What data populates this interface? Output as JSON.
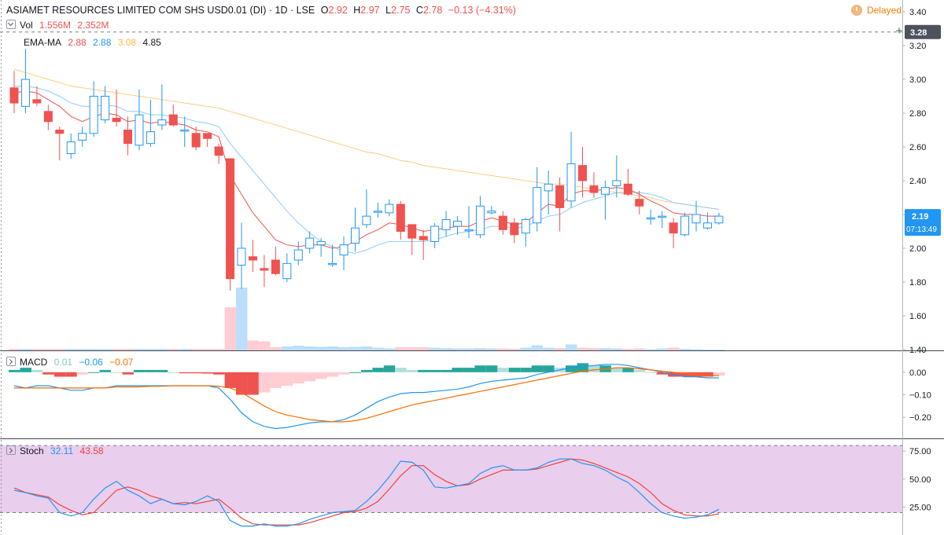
{
  "header": {
    "symbol": "ASIAMET RESOURCES LIMITED COM SHS USD0.01 (DI) · 1D · LSE",
    "ohlc": [
      {
        "label": "O",
        "value": "2.92"
      },
      {
        "label": "H",
        "value": "2.97"
      },
      {
        "label": "L",
        "value": "2.75"
      },
      {
        "label": "C",
        "value": "2.78"
      }
    ],
    "change": "−0.13 (−4.31%)",
    "delayed": "Delayed"
  },
  "legends": {
    "vol": {
      "label": "Vol",
      "v1": "1.556M",
      "v2": "2.352M"
    },
    "ema": {
      "label": "EMA-MA",
      "v1": "2.88",
      "v2": "2.88",
      "v3": "3.08",
      "v4": "4.85"
    },
    "macd": {
      "label": "MACD",
      "v1": "0.01",
      "v2": "−0.06",
      "v3": "−0.07"
    },
    "stoch": {
      "label": "Stoch",
      "v1": "32.11",
      "v2": "43.58"
    }
  },
  "price_labels": {
    "crosshair": "3.28",
    "last": "2.19",
    "countdown": "07:13:49"
  },
  "colors": {
    "up": "#2196f3",
    "down": "#ef5350",
    "hist_up_strong": "#26a69a",
    "hist_up_weak": "#b2dfdb",
    "hist_down_strong": "#ef5350",
    "hist_down_weak": "#ffcdd2",
    "ema_fast": "#ef5350",
    "ema_mid": "#90caf9",
    "ma_slow": "#ffcc80",
    "macd_line": "#2196f3",
    "signal_line": "#ff6d00",
    "stoch_k": "#2196f3",
    "stoch_d": "#f44336",
    "stoch_band": "#e1bee7"
  },
  "chart_data": [
    {
      "type": "candlestick",
      "y_ticks": [
        "3.40",
        "3.20",
        "3.00",
        "2.80",
        "2.60",
        "2.40",
        "2.20",
        "2.00",
        "1.80",
        "1.60",
        "1.40"
      ],
      "ylim": [
        1.4,
        3.4
      ],
      "candles": [
        {
          "o": 2.95,
          "h": 3.05,
          "l": 2.8,
          "c": 2.86
        },
        {
          "o": 2.84,
          "h": 3.18,
          "l": 2.8,
          "c": 3.0
        },
        {
          "o": 2.88,
          "h": 2.96,
          "l": 2.84,
          "c": 2.86
        },
        {
          "o": 2.81,
          "h": 2.85,
          "l": 2.7,
          "c": 2.75
        },
        {
          "o": 2.7,
          "h": 2.72,
          "l": 2.52,
          "c": 2.68
        },
        {
          "o": 2.56,
          "h": 2.68,
          "l": 2.53,
          "c": 2.63
        },
        {
          "o": 2.64,
          "h": 2.72,
          "l": 2.6,
          "c": 2.68
        },
        {
          "o": 2.68,
          "h": 2.99,
          "l": 2.66,
          "c": 2.9
        },
        {
          "o": 2.76,
          "h": 2.96,
          "l": 2.74,
          "c": 2.9
        },
        {
          "o": 2.77,
          "h": 2.94,
          "l": 2.72,
          "c": 2.75
        },
        {
          "o": 2.7,
          "h": 2.78,
          "l": 2.55,
          "c": 2.62
        },
        {
          "o": 2.61,
          "h": 2.94,
          "l": 2.58,
          "c": 2.79
        },
        {
          "o": 2.62,
          "h": 2.88,
          "l": 2.6,
          "c": 2.69
        },
        {
          "o": 2.73,
          "h": 2.97,
          "l": 2.7,
          "c": 2.76
        },
        {
          "o": 2.79,
          "h": 2.85,
          "l": 2.72,
          "c": 2.73
        },
        {
          "o": 2.7,
          "h": 2.78,
          "l": 2.6,
          "c": 2.7
        },
        {
          "o": 2.68,
          "h": 2.72,
          "l": 2.58,
          "c": 2.6
        },
        {
          "o": 2.68,
          "h": 2.68,
          "l": 2.6,
          "c": 2.65
        },
        {
          "o": 2.6,
          "h": 2.62,
          "l": 2.5,
          "c": 2.55
        },
        {
          "o": 2.53,
          "h": 2.53,
          "l": 1.75,
          "c": 1.82
        },
        {
          "o": 1.9,
          "h": 2.15,
          "l": 1.76,
          "c": 2.0
        },
        {
          "o": 1.95,
          "h": 2.05,
          "l": 1.86,
          "c": 1.93
        },
        {
          "o": 1.88,
          "h": 1.96,
          "l": 1.77,
          "c": 1.87
        },
        {
          "o": 1.93,
          "h": 2.01,
          "l": 1.84,
          "c": 1.85
        },
        {
          "o": 1.82,
          "h": 1.97,
          "l": 1.8,
          "c": 1.91
        },
        {
          "o": 1.93,
          "h": 2.04,
          "l": 1.9,
          "c": 1.99
        },
        {
          "o": 2.0,
          "h": 2.1,
          "l": 1.97,
          "c": 2.06
        },
        {
          "o": 2.02,
          "h": 2.06,
          "l": 1.95,
          "c": 2.04
        },
        {
          "o": 1.91,
          "h": 2.02,
          "l": 1.89,
          "c": 1.91
        },
        {
          "o": 1.96,
          "h": 2.07,
          "l": 1.87,
          "c": 2.02
        },
        {
          "o": 2.03,
          "h": 2.24,
          "l": 1.98,
          "c": 2.12
        },
        {
          "o": 2.14,
          "h": 2.35,
          "l": 2.12,
          "c": 2.19
        },
        {
          "o": 2.22,
          "h": 2.27,
          "l": 2.18,
          "c": 2.22
        },
        {
          "o": 2.21,
          "h": 2.29,
          "l": 2.19,
          "c": 2.26
        },
        {
          "o": 2.26,
          "h": 2.28,
          "l": 2.05,
          "c": 2.1
        },
        {
          "o": 2.14,
          "h": 2.14,
          "l": 1.96,
          "c": 2.06
        },
        {
          "o": 2.07,
          "h": 2.11,
          "l": 1.93,
          "c": 2.05
        },
        {
          "o": 2.04,
          "h": 2.15,
          "l": 2.0,
          "c": 2.13
        },
        {
          "o": 2.11,
          "h": 2.22,
          "l": 2.07,
          "c": 2.17
        },
        {
          "o": 2.13,
          "h": 2.19,
          "l": 2.08,
          "c": 2.16
        },
        {
          "o": 2.11,
          "h": 2.25,
          "l": 2.06,
          "c": 2.11
        },
        {
          "o": 2.08,
          "h": 2.31,
          "l": 2.06,
          "c": 2.25
        },
        {
          "o": 2.21,
          "h": 2.25,
          "l": 2.2,
          "c": 2.22
        },
        {
          "o": 2.19,
          "h": 2.22,
          "l": 2.08,
          "c": 2.11
        },
        {
          "o": 2.15,
          "h": 2.18,
          "l": 2.03,
          "c": 2.08
        },
        {
          "o": 2.09,
          "h": 2.18,
          "l": 2.01,
          "c": 2.17
        },
        {
          "o": 2.15,
          "h": 2.48,
          "l": 2.1,
          "c": 2.36
        },
        {
          "o": 2.34,
          "h": 2.46,
          "l": 2.2,
          "c": 2.38
        },
        {
          "o": 2.37,
          "h": 2.42,
          "l": 2.1,
          "c": 2.24
        },
        {
          "o": 2.28,
          "h": 2.69,
          "l": 2.24,
          "c": 2.5
        },
        {
          "o": 2.49,
          "h": 2.6,
          "l": 2.3,
          "c": 2.4
        },
        {
          "o": 2.37,
          "h": 2.45,
          "l": 2.3,
          "c": 2.33
        },
        {
          "o": 2.32,
          "h": 2.4,
          "l": 2.17,
          "c": 2.36
        },
        {
          "o": 2.37,
          "h": 2.55,
          "l": 2.3,
          "c": 2.4
        },
        {
          "o": 2.38,
          "h": 2.47,
          "l": 2.31,
          "c": 2.32
        },
        {
          "o": 2.29,
          "h": 2.34,
          "l": 2.2,
          "c": 2.25
        },
        {
          "o": 2.18,
          "h": 2.23,
          "l": 2.14,
          "c": 2.18
        },
        {
          "o": 2.19,
          "h": 2.22,
          "l": 2.12,
          "c": 2.19
        },
        {
          "o": 2.15,
          "h": 2.18,
          "l": 2.0,
          "c": 2.09
        },
        {
          "o": 2.08,
          "h": 2.21,
          "l": 2.07,
          "c": 2.19
        },
        {
          "o": 2.15,
          "h": 2.28,
          "l": 2.1,
          "c": 2.2
        },
        {
          "o": 2.12,
          "h": 2.21,
          "l": 2.11,
          "c": 2.15
        },
        {
          "o": 2.15,
          "h": 2.21,
          "l": 2.14,
          "c": 2.19
        }
      ],
      "ema_fast": [
        2.92,
        2.93,
        2.92,
        2.88,
        2.84,
        2.78,
        2.75,
        2.78,
        2.8,
        2.79,
        2.75,
        2.76,
        2.74,
        2.75,
        2.74,
        2.73,
        2.7,
        2.69,
        2.66,
        2.43,
        2.32,
        2.21,
        2.13,
        2.05,
        2.02,
        2.01,
        2.02,
        2.02,
        2.0,
        2.01,
        2.04,
        2.08,
        2.11,
        2.15,
        2.14,
        2.12,
        2.1,
        2.11,
        2.12,
        2.13,
        2.13,
        2.16,
        2.18,
        2.16,
        2.14,
        2.15,
        2.21,
        2.26,
        2.25,
        2.32,
        2.34,
        2.34,
        2.35,
        2.36,
        2.35,
        2.32,
        2.28,
        2.25,
        2.21,
        2.2,
        2.2,
        2.19,
        2.19
      ],
      "ema_mid": [
        2.96,
        2.96,
        2.95,
        2.93,
        2.9,
        2.86,
        2.84,
        2.84,
        2.85,
        2.84,
        2.81,
        2.81,
        2.79,
        2.79,
        2.78,
        2.77,
        2.75,
        2.74,
        2.72,
        2.62,
        2.54,
        2.46,
        2.38,
        2.3,
        2.22,
        2.15,
        2.09,
        2.04,
        2.01,
        1.98,
        1.97,
        1.99,
        2.02,
        2.04,
        2.04,
        2.04,
        2.04,
        2.05,
        2.07,
        2.09,
        2.1,
        2.11,
        2.13,
        2.13,
        2.12,
        2.13,
        2.16,
        2.19,
        2.2,
        2.24,
        2.27,
        2.29,
        2.31,
        2.33,
        2.33,
        2.33,
        2.32,
        2.3,
        2.27,
        2.26,
        2.25,
        2.24,
        2.23
      ],
      "ma_slow": [
        3.06,
        3.04,
        3.02,
        3.0,
        2.98,
        2.96,
        2.95,
        2.94,
        2.93,
        2.92,
        2.91,
        2.9,
        2.89,
        2.88,
        2.87,
        2.86,
        2.85,
        2.84,
        2.83,
        2.81,
        2.79,
        2.77,
        2.75,
        2.73,
        2.71,
        2.69,
        2.67,
        2.65,
        2.63,
        2.61,
        2.59,
        2.57,
        2.56,
        2.54,
        2.52,
        2.51,
        2.49,
        2.48,
        2.47,
        2.46,
        2.45,
        2.44,
        2.43,
        2.42,
        2.41,
        2.4,
        2.39,
        2.38,
        2.38,
        2.37,
        2.36,
        2.35,
        2.34,
        2.33,
        2.32,
        2.31,
        2.3,
        2.28,
        2.27,
        2.26,
        2.25,
        2.24,
        2.23
      ],
      "volume_ylim": [
        0,
        20
      ],
      "volume": [
        0.4,
        0.4,
        0.4,
        0.4,
        0.4,
        0.4,
        0.4,
        0.4,
        0.4,
        0.4,
        0.4,
        0.4,
        0.4,
        0.4,
        0.4,
        0.4,
        0.4,
        0.4,
        0.4,
        11,
        16,
        2.5,
        2.3,
        0.8,
        1,
        1.2,
        1,
        0.9,
        1,
        0.8,
        0.9,
        1,
        0.7,
        0.5,
        0.8,
        0.8,
        0.8,
        0.7,
        0.6,
        0.5,
        0.5,
        0.6,
        0.5,
        0.5,
        0.4,
        0.7,
        1.3,
        0.7,
        0.6,
        1.5,
        0.7,
        0.6,
        0.6,
        0.5,
        0.4,
        0.5,
        0.3,
        0.5,
        0.7,
        0.4,
        0.3,
        0.2,
        0.2
      ],
      "volume_color_note": "volume bars tinted with candle direction"
    },
    {
      "type": "histogram+line",
      "name": "MACD",
      "y_ticks": [
        "0.00",
        "−0.10",
        "−0.20"
      ],
      "ylim": [
        -0.29,
        0.09
      ],
      "histogram": [
        0.01,
        0.02,
        0.01,
        -0.01,
        -0.02,
        -0.02,
        -0.01,
        0.0,
        0.01,
        0.0,
        -0.01,
        0.01,
        0.01,
        0.01,
        0.0,
        -0.005,
        -0.005,
        -0.006,
        -0.01,
        -0.07,
        -0.1,
        -0.1,
        -0.09,
        -0.07,
        -0.06,
        -0.05,
        -0.04,
        -0.03,
        -0.02,
        -0.01,
        0.0,
        0.01,
        0.02,
        0.03,
        0.02,
        0.01,
        0.01,
        0.01,
        0.01,
        0.02,
        0.02,
        0.03,
        0.03,
        0.02,
        0.02,
        0.02,
        0.03,
        0.03,
        0.02,
        0.03,
        0.04,
        0.03,
        0.03,
        0.02,
        0.02,
        0.01,
        0.0,
        -0.01,
        -0.02,
        -0.02,
        -0.02,
        -0.02,
        -0.015
      ],
      "macd": [
        -0.06,
        -0.07,
        -0.06,
        -0.06,
        -0.07,
        -0.08,
        -0.08,
        -0.07,
        -0.07,
        -0.06,
        -0.06,
        -0.06,
        -0.06,
        -0.06,
        -0.06,
        -0.06,
        -0.06,
        -0.06,
        -0.07,
        -0.12,
        -0.18,
        -0.22,
        -0.24,
        -0.25,
        -0.245,
        -0.235,
        -0.225,
        -0.22,
        -0.22,
        -0.21,
        -0.19,
        -0.16,
        -0.13,
        -0.11,
        -0.095,
        -0.09,
        -0.09,
        -0.085,
        -0.08,
        -0.075,
        -0.065,
        -0.05,
        -0.04,
        -0.035,
        -0.03,
        -0.025,
        -0.01,
        0.0,
        0.01,
        0.02,
        0.025,
        0.03,
        0.035,
        0.035,
        0.03,
        0.02,
        0.01,
        0.0,
        -0.01,
        -0.02,
        -0.02,
        -0.025,
        -0.025
      ],
      "signal": [
        -0.07,
        -0.07,
        -0.07,
        -0.07,
        -0.07,
        -0.07,
        -0.07,
        -0.07,
        -0.07,
        -0.065,
        -0.065,
        -0.065,
        -0.062,
        -0.062,
        -0.06,
        -0.06,
        -0.06,
        -0.06,
        -0.062,
        -0.07,
        -0.09,
        -0.12,
        -0.15,
        -0.175,
        -0.19,
        -0.2,
        -0.21,
        -0.215,
        -0.22,
        -0.22,
        -0.215,
        -0.205,
        -0.19,
        -0.175,
        -0.16,
        -0.145,
        -0.135,
        -0.125,
        -0.115,
        -0.105,
        -0.095,
        -0.085,
        -0.075,
        -0.065,
        -0.055,
        -0.045,
        -0.035,
        -0.025,
        -0.015,
        -0.005,
        0.005,
        0.01,
        0.015,
        0.02,
        0.02,
        0.015,
        0.01,
        0.005,
        0.0,
        -0.005,
        -0.01,
        -0.015,
        -0.015
      ]
    },
    {
      "type": "line",
      "name": "Stochastic",
      "y_ticks": [
        "75.00",
        "50.00",
        "25.00"
      ],
      "ylim": [
        0,
        85
      ],
      "band": [
        20,
        80
      ],
      "k": [
        40,
        38,
        35,
        33,
        20,
        17,
        20,
        32,
        42,
        48,
        40,
        35,
        28,
        32,
        28,
        27,
        30,
        35,
        30,
        13,
        8,
        8,
        10,
        8,
        8,
        10,
        14,
        17,
        20,
        21,
        22,
        30,
        40,
        52,
        66,
        65,
        58,
        43,
        42,
        44,
        46,
        55,
        60,
        62,
        58,
        58,
        60,
        65,
        68,
        68,
        64,
        62,
        58,
        52,
        47,
        38,
        28,
        20,
        17,
        15,
        16,
        18,
        23
      ],
      "d": [
        42,
        38,
        36,
        34,
        27,
        22,
        18,
        20,
        30,
        40,
        43,
        40,
        35,
        32,
        28,
        29,
        28,
        30,
        32,
        24,
        15,
        10,
        9,
        9,
        9,
        9,
        11,
        14,
        17,
        20,
        21,
        24,
        30,
        41,
        53,
        62,
        62,
        54,
        48,
        44,
        45,
        50,
        54,
        58,
        58,
        58,
        59,
        62,
        65,
        68,
        67,
        64,
        60,
        56,
        52,
        46,
        38,
        28,
        22,
        18,
        17,
        17,
        19
      ]
    }
  ]
}
